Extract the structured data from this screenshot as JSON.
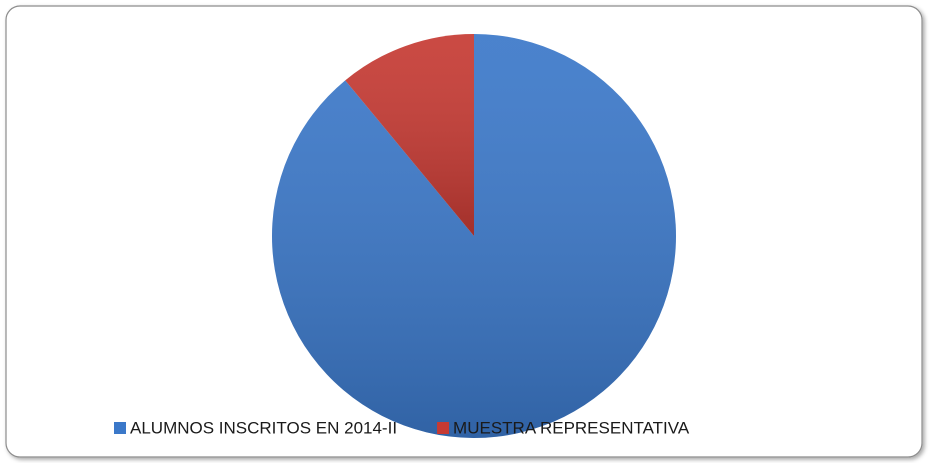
{
  "chart_data": {
    "type": "pie",
    "categories": [
      "ALUMNOS INSCRITOS EN 2014-II",
      "MUESTRA REPRESENTATIVA"
    ],
    "values": [
      89,
      11
    ],
    "colors": [
      "#3b78c9",
      "#c63a33"
    ],
    "legend": "bottom"
  }
}
